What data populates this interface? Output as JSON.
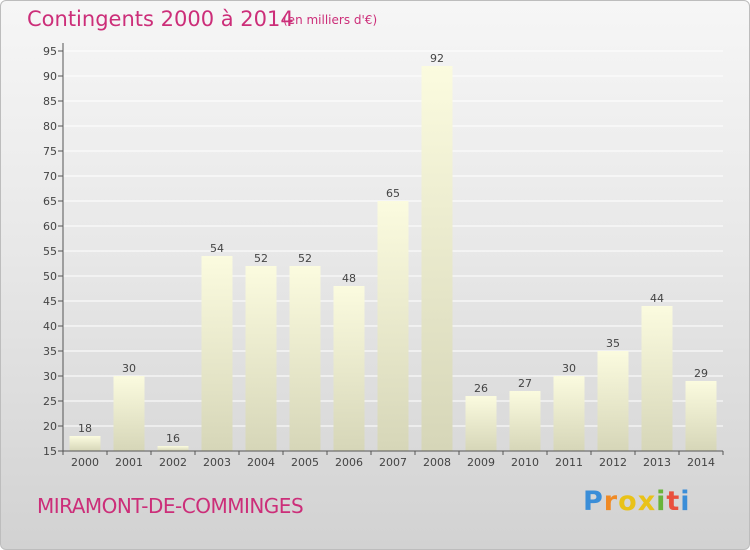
{
  "header": {
    "title": "Contingents 2000 à 2014",
    "subtitle": "(en milliers d'€)"
  },
  "footer": {
    "place": "MIRAMONT-DE-COMMINGES",
    "logo": [
      "P",
      "r",
      "o",
      "x",
      "i",
      "t",
      "i"
    ],
    "logo_colors": [
      "#3b8ed8",
      "#f08a24",
      "#e9c218",
      "#e9c218",
      "#69b43a",
      "#e94f3c",
      "#3b8ed8"
    ]
  },
  "colors": {
    "accent": "#cc2e79",
    "bar_top": "#fbfbdf",
    "bar_bottom": "#d6d6b8",
    "axis": "#555555",
    "grid": "#ffffff"
  },
  "chart_data": {
    "type": "bar",
    "categories": [
      "2000",
      "2001",
      "2002",
      "2003",
      "2004",
      "2005",
      "2006",
      "2007",
      "2008",
      "2009",
      "2010",
      "2011",
      "2012",
      "2013",
      "2014"
    ],
    "values": [
      18,
      30,
      16,
      54,
      52,
      52,
      48,
      65,
      92,
      26,
      27,
      30,
      35,
      44,
      29
    ],
    "ylim": [
      15,
      95
    ],
    "yticks": [
      15,
      20,
      25,
      30,
      35,
      40,
      45,
      50,
      55,
      60,
      65,
      70,
      75,
      80,
      85,
      90,
      95
    ],
    "grid": true
  }
}
